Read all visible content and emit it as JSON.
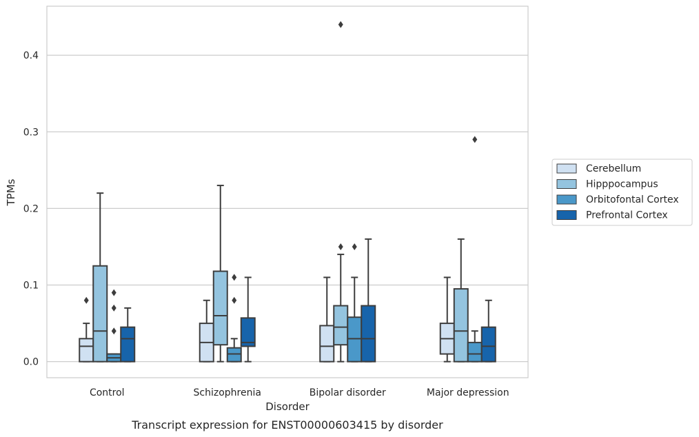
{
  "caption": "Transcript expression for ENST00000603415 by disorder",
  "chart_data": {
    "type": "box",
    "xlabel": "Disorder",
    "ylabel": "TPMs",
    "categories": [
      "Control",
      "Schizophrenia",
      "Bipolar disorder",
      "Major depression"
    ],
    "ylim": [
      -0.021,
      0.464
    ],
    "yticks": [
      0.0,
      0.1,
      0.2,
      0.3,
      0.4
    ],
    "ytick_labels": [
      "0.0",
      "0.1",
      "0.2",
      "0.3",
      "0.4"
    ],
    "grid": "horizontal",
    "legend_position": "right",
    "series": [
      {
        "name": "Cerebellum",
        "color": "#d0e1f2",
        "boxes": [
          {
            "whislo": 0.0,
            "q1": 0.0,
            "med": 0.02,
            "q3": 0.03,
            "whishi": 0.05,
            "fliers": [
              0.08
            ]
          },
          {
            "whislo": 0.0,
            "q1": 0.0,
            "med": 0.025,
            "q3": 0.05,
            "whishi": 0.08,
            "fliers": []
          },
          {
            "whislo": 0.0,
            "q1": 0.0,
            "med": 0.02,
            "q3": 0.047,
            "whishi": 0.11,
            "fliers": []
          },
          {
            "whislo": 0.0,
            "q1": 0.01,
            "med": 0.03,
            "q3": 0.05,
            "whishi": 0.11,
            "fliers": []
          }
        ]
      },
      {
        "name": "Hipppocampus",
        "color": "#94c4df",
        "boxes": [
          {
            "whislo": 0.0,
            "q1": 0.0,
            "med": 0.04,
            "q3": 0.125,
            "whishi": 0.22,
            "fliers": []
          },
          {
            "whislo": 0.0,
            "q1": 0.022,
            "med": 0.06,
            "q3": 0.118,
            "whishi": 0.23,
            "fliers": []
          },
          {
            "whislo": 0.0,
            "q1": 0.022,
            "med": 0.045,
            "q3": 0.073,
            "whishi": 0.14,
            "fliers": [
              0.15,
              0.44
            ]
          },
          {
            "whislo": 0.0,
            "q1": 0.0,
            "med": 0.04,
            "q3": 0.095,
            "whishi": 0.16,
            "fliers": []
          }
        ]
      },
      {
        "name": "Orbitofontal Cortex",
        "color": "#4a98c9",
        "boxes": [
          {
            "whislo": 0.0,
            "q1": 0.0,
            "med": 0.005,
            "q3": 0.01,
            "whishi": 0.01,
            "fliers": [
              0.04,
              0.07,
              0.09
            ]
          },
          {
            "whislo": 0.0,
            "q1": 0.0,
            "med": 0.01,
            "q3": 0.018,
            "whishi": 0.03,
            "fliers": [
              0.08,
              0.11
            ]
          },
          {
            "whislo": 0.0,
            "q1": 0.0,
            "med": 0.03,
            "q3": 0.058,
            "whishi": 0.11,
            "fliers": [
              0.15
            ]
          },
          {
            "whislo": 0.0,
            "q1": 0.0,
            "med": 0.01,
            "q3": 0.025,
            "whishi": 0.04,
            "fliers": [
              0.29
            ]
          }
        ]
      },
      {
        "name": "Prefrontal Cortex",
        "color": "#1764ab",
        "boxes": [
          {
            "whislo": 0.0,
            "q1": 0.0,
            "med": 0.03,
            "q3": 0.045,
            "whishi": 0.07,
            "fliers": []
          },
          {
            "whislo": 0.0,
            "q1": 0.02,
            "med": 0.025,
            "q3": 0.057,
            "whishi": 0.11,
            "fliers": []
          },
          {
            "whislo": 0.0,
            "q1": 0.0,
            "med": 0.03,
            "q3": 0.073,
            "whishi": 0.16,
            "fliers": []
          },
          {
            "whislo": 0.0,
            "q1": 0.0,
            "med": 0.02,
            "q3": 0.045,
            "whishi": 0.08,
            "fliers": []
          }
        ]
      }
    ]
  }
}
